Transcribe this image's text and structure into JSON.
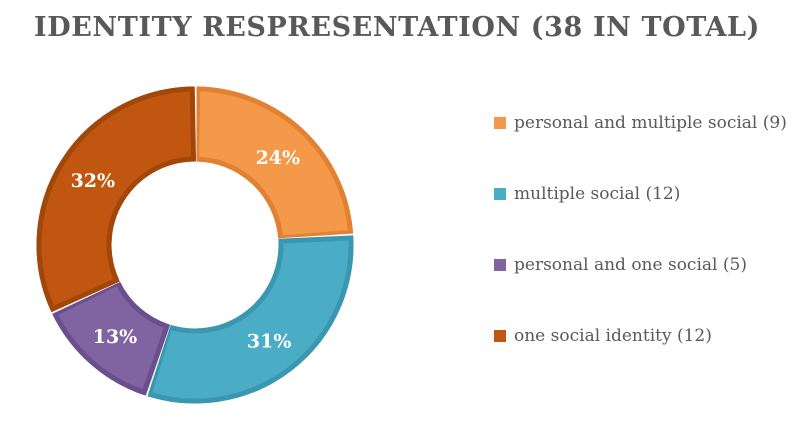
{
  "chart_data": {
    "type": "pie",
    "variant": "donut",
    "title": "IDENTITY RESPRESENTATION (38 IN TOTAL)",
    "slices": [
      {
        "label": "personal and multiple social (9)",
        "value": 24,
        "display": "24%",
        "color": "#F4994A",
        "edge": "#E28132"
      },
      {
        "label": "multiple social (12)",
        "value": 31,
        "display": "31%",
        "color": "#4BACC6",
        "edge": "#3A97B0"
      },
      {
        "label": "personal and one social (5)",
        "value": 13,
        "display": "13%",
        "color": "#8064A2",
        "edge": "#6A4F8C"
      },
      {
        "label": "one social identity (12)",
        "value": 32,
        "display": "32%",
        "color": "#C0560F",
        "edge": "#A2470A"
      }
    ],
    "legend_position": "right",
    "start_angle_deg": 0,
    "direction": "clockwise"
  }
}
